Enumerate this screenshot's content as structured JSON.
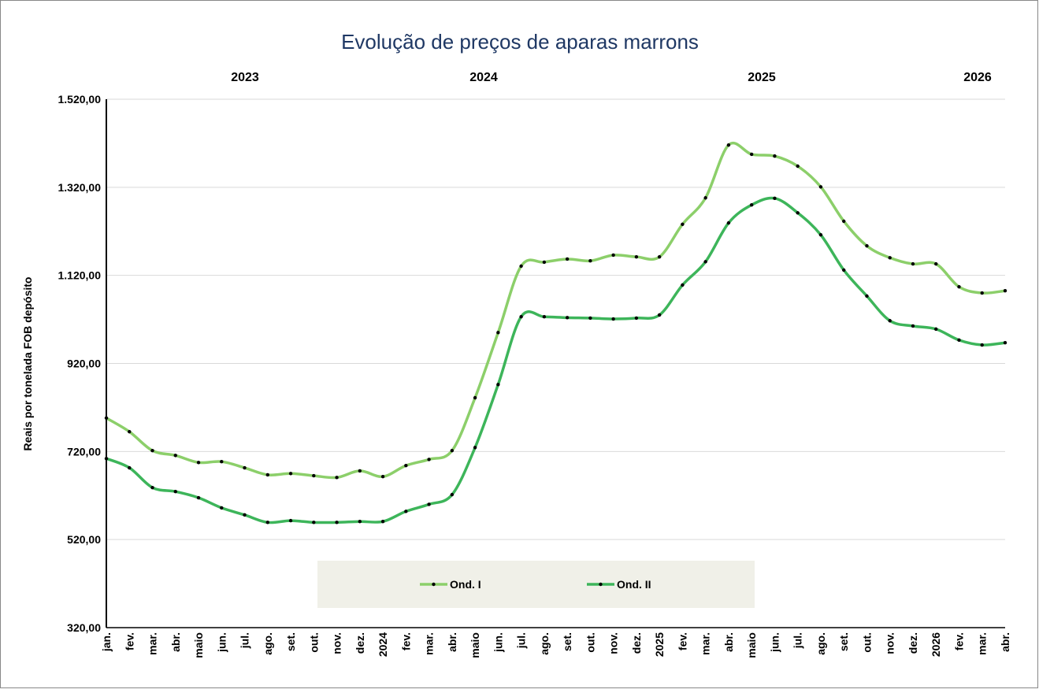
{
  "chart_data": {
    "type": "line",
    "title": "Evolução de preços de aparas marrons",
    "y_label": "Reais por tonelada FOB depósito",
    "year_labels": [
      "2023",
      "2024",
      "2025",
      "2026"
    ],
    "categories": [
      "jan.",
      "fev.",
      "mar.",
      "abr.",
      "maio",
      "jun.",
      "jul.",
      "ago.",
      "set.",
      "out.",
      "nov.",
      "dez.",
      "2024",
      "fev.",
      "mar.",
      "abr.",
      "maio",
      "jun.",
      "jul.",
      "ago.",
      "set.",
      "out.",
      "nov.",
      "dez.",
      "2025",
      "fev.",
      "mar.",
      "abr.",
      "maio",
      "jun.",
      "jul.",
      "ago.",
      "set.",
      "out.",
      "nov.",
      "dez.",
      "2026",
      "fev.",
      "mar.",
      "abr."
    ],
    "series": [
      {
        "name": "Ond. I",
        "color": "#8ccf6a",
        "values": [
          796,
          765,
          722,
          711,
          695,
          697,
          683,
          667,
          670,
          665,
          661,
          676,
          663,
          688,
          702,
          722,
          842,
          990,
          1141,
          1150,
          1157,
          1153,
          1166,
          1162,
          1162,
          1236,
          1296,
          1416,
          1395,
          1391,
          1368,
          1321,
          1243,
          1187,
          1160,
          1146,
          1146,
          1094,
          1080,
          1085
        ]
      },
      {
        "name": "Ond. II",
        "color": "#3db55a",
        "values": [
          704,
          683,
          638,
          629,
          615,
          592,
          576,
          559,
          563,
          559,
          559,
          561,
          561,
          584,
          600,
          622,
          729,
          872,
          1026,
          1026,
          1024,
          1023,
          1021,
          1023,
          1030,
          1098,
          1151,
          1239,
          1280,
          1295,
          1262,
          1212,
          1132,
          1073,
          1017,
          1005,
          998,
          973,
          962,
          967
        ]
      }
    ],
    "ylim": [
      320,
      1520
    ],
    "yticks": [
      {
        "value": 320,
        "label": "320,00"
      },
      {
        "value": 520,
        "label": "520,00"
      },
      {
        "value": 720,
        "label": "720,00"
      },
      {
        "value": 920,
        "label": "920,00"
      },
      {
        "value": 1120,
        "label": "1.120,00"
      },
      {
        "value": 1320,
        "label": "1.320,00"
      },
      {
        "value": 1520,
        "label": "1.520,00"
      }
    ],
    "grid": true,
    "legend": "bottom"
  }
}
